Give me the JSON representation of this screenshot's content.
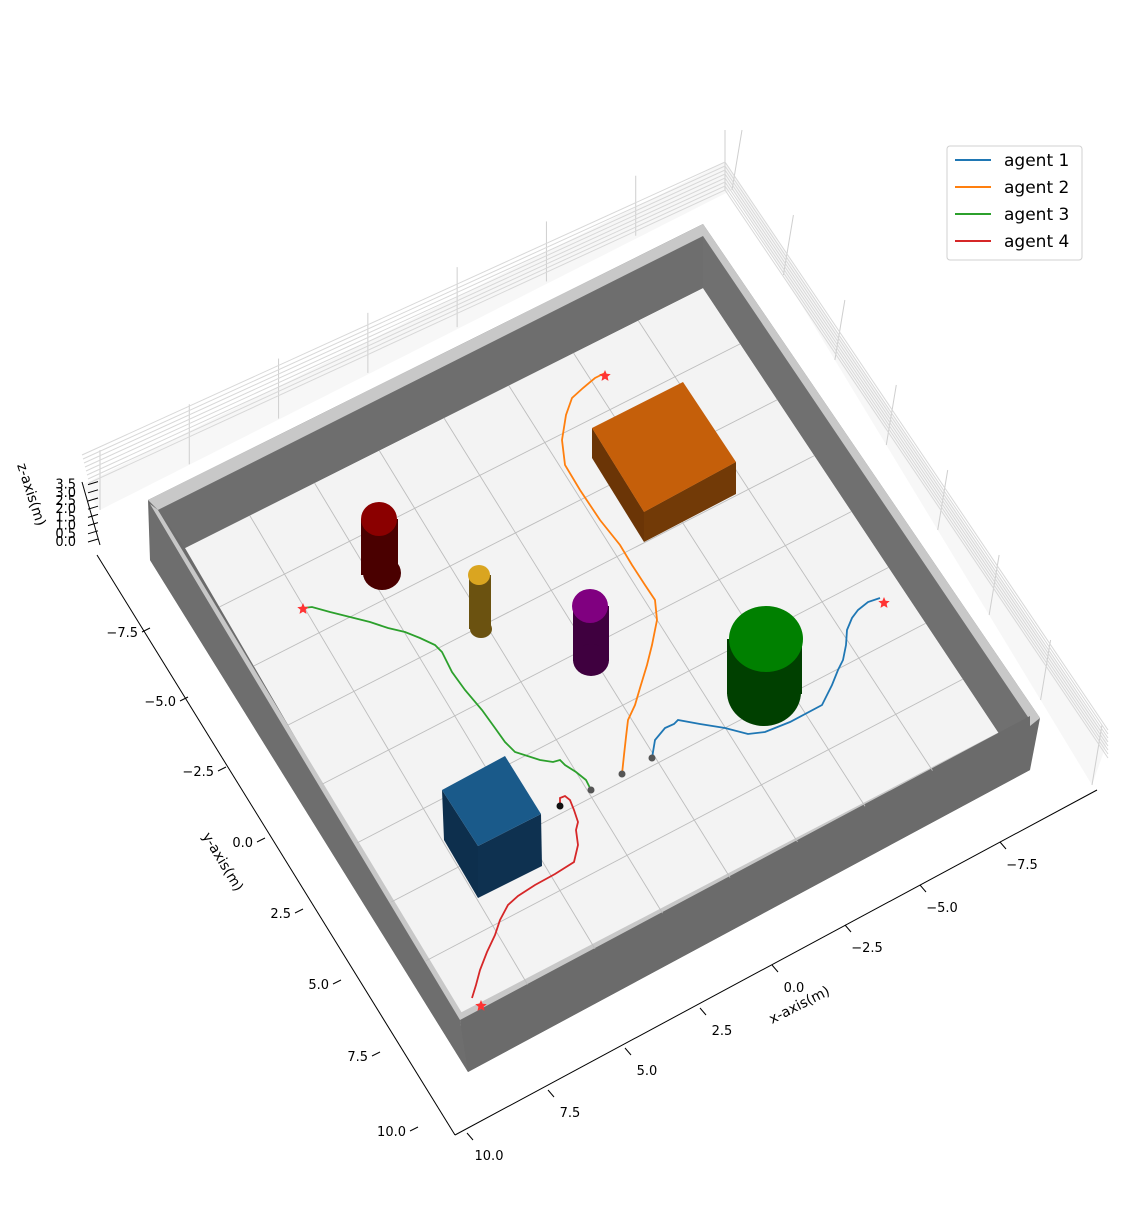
{
  "chart_data": {
    "type": "line3d",
    "title": "",
    "x_axis": {
      "label": "x-axis(m)",
      "ticks": [
        "−7.5",
        "−5.0",
        "−2.5",
        "0.0",
        "2.5",
        "5.0",
        "7.5",
        "10.0"
      ]
    },
    "y_axis": {
      "label": "y-axis(m)",
      "ticks": [
        "−7.5",
        "−5.0",
        "−2.5",
        "0.0",
        "2.5",
        "5.0",
        "7.5",
        "10.0"
      ]
    },
    "z_axis": {
      "label": "z-axis(m)",
      "ticks": [
        "0.0",
        "0.5",
        "1.0",
        "1.5",
        "2.0",
        "2.5",
        "3.0",
        "3.5"
      ]
    },
    "grid": true,
    "legend_position": "top-right",
    "series": [
      {
        "name": "agent 1",
        "color": "#1f77b4"
      },
      {
        "name": "agent 2",
        "color": "#ff7f0e"
      },
      {
        "name": "agent 3",
        "color": "#2ca02c"
      },
      {
        "name": "agent 4",
        "color": "#d62728"
      }
    ],
    "markers": {
      "start_color": "#555555",
      "goal_color": "#ff3333",
      "start_symbol": "circle",
      "goal_symbol": "star"
    },
    "obstacles": [
      {
        "shape": "box",
        "color": "#c55f0a"
      },
      {
        "shape": "box",
        "color": "#1a5a8a"
      },
      {
        "shape": "cylinder",
        "color": "#8b0000"
      },
      {
        "shape": "cylinder",
        "color": "#daa520"
      },
      {
        "shape": "cylinder",
        "color": "#800080"
      },
      {
        "shape": "cylinder",
        "color": "#008000"
      }
    ],
    "walls": {
      "color": "#6b6b6b",
      "top_color": "#c8c8c8",
      "floor_color": "#f3f3f3"
    }
  }
}
